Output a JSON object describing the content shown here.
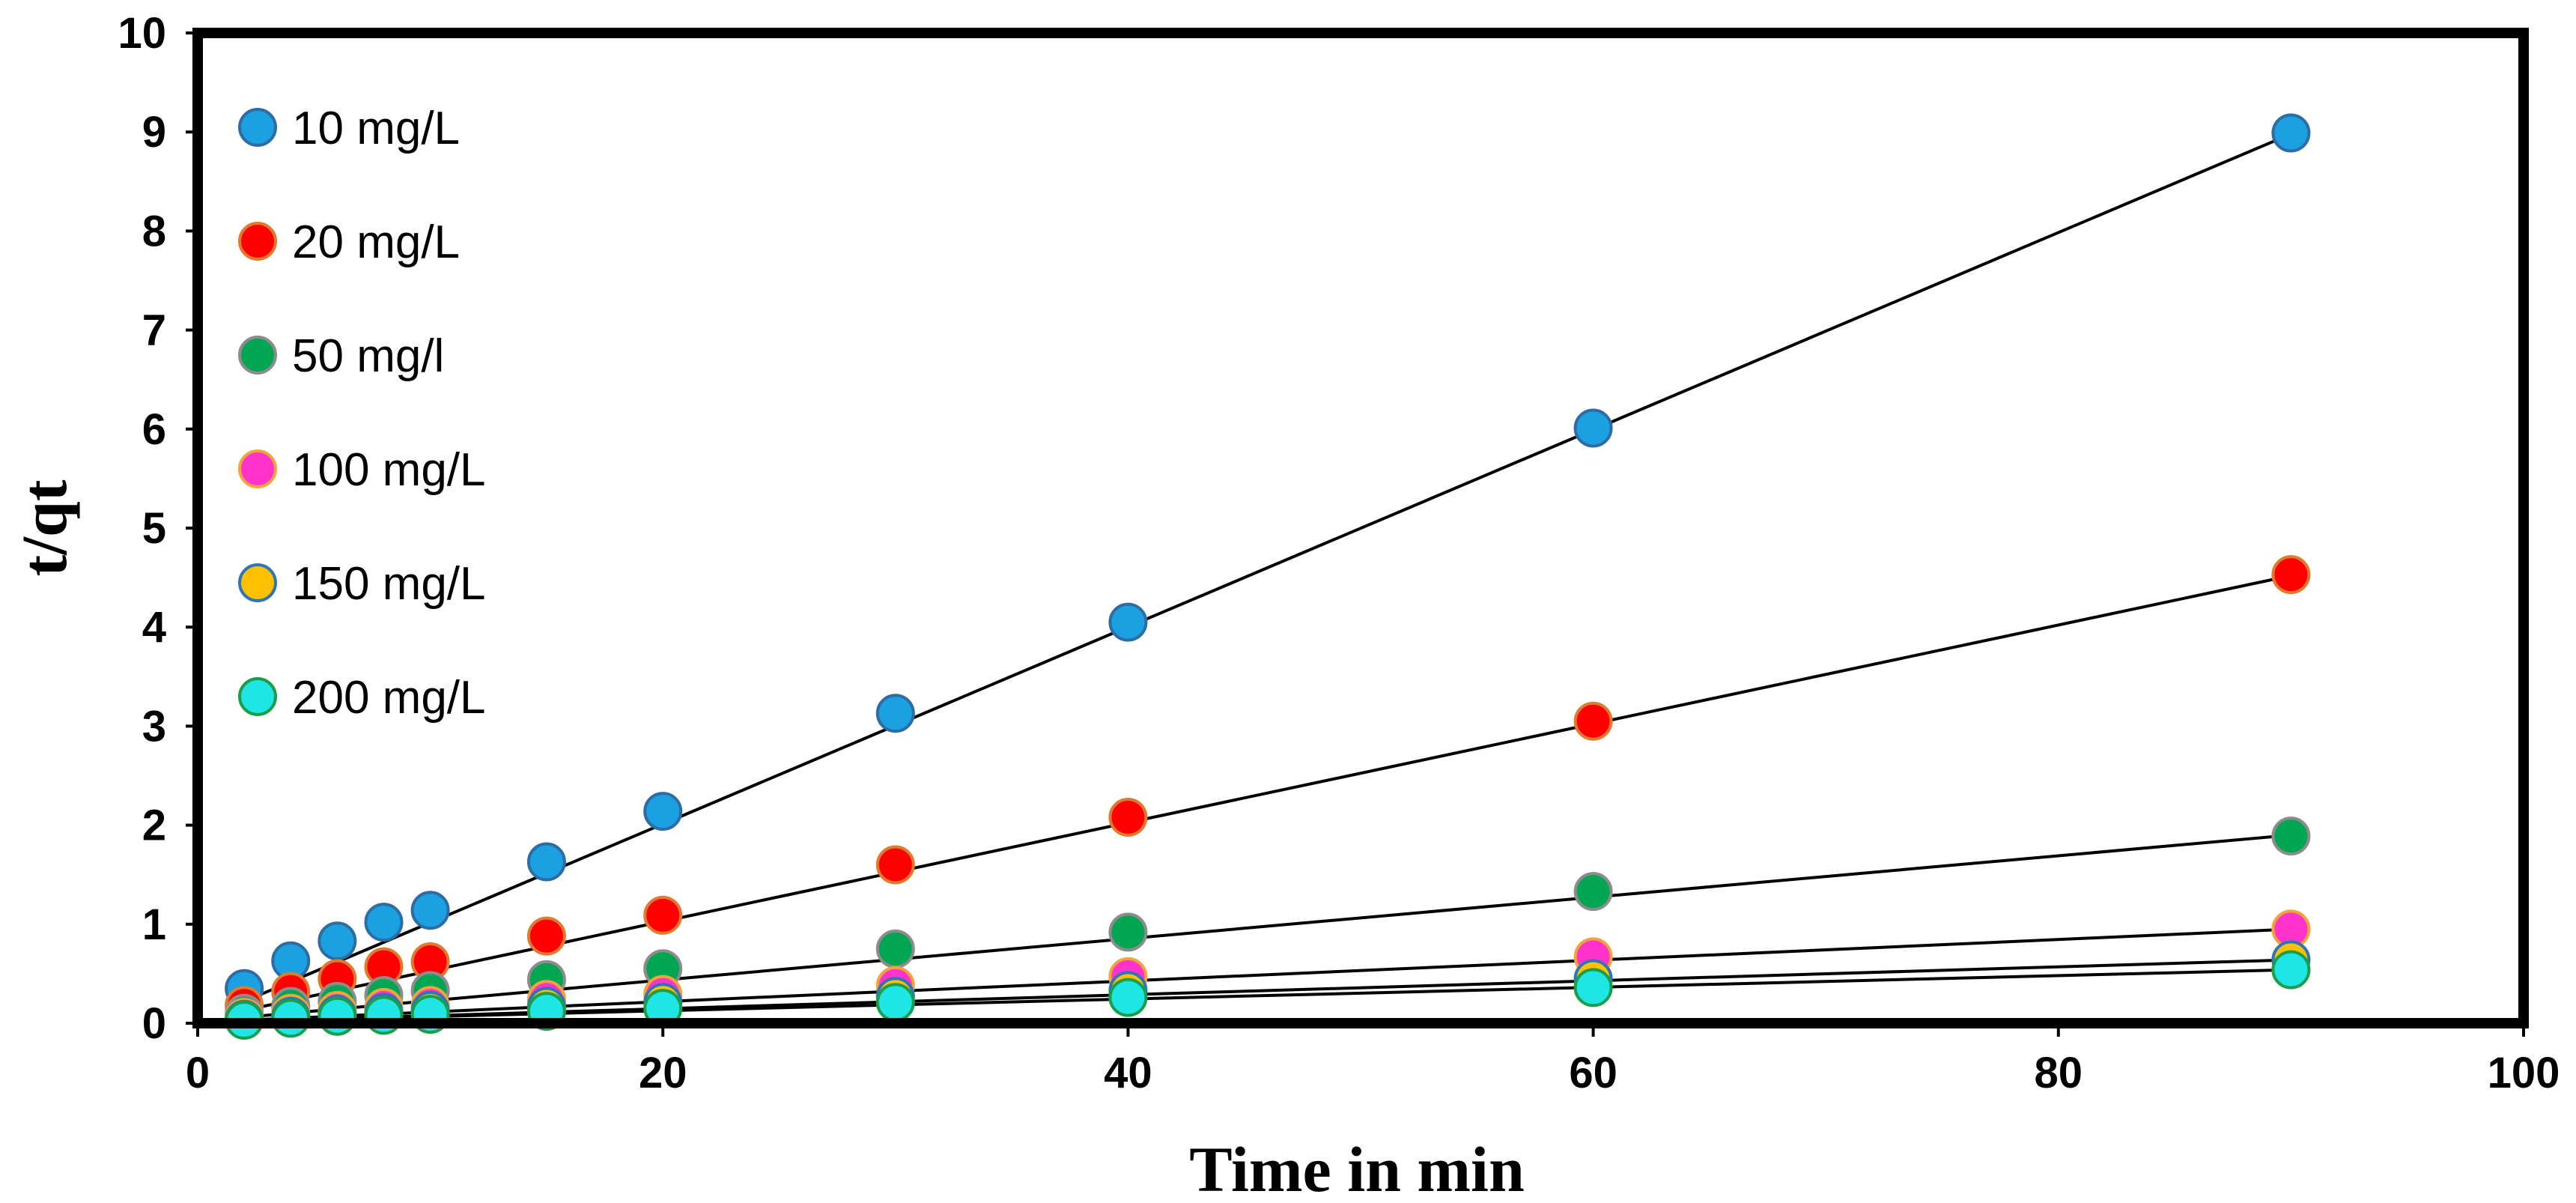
{
  "chart_data": {
    "type": "scatter",
    "title": "",
    "xlabel": "Time in min",
    "ylabel": "t/qt",
    "xlim": [
      0,
      100
    ],
    "ylim": [
      0,
      10
    ],
    "xticks": [
      0,
      20,
      40,
      60,
      80,
      100
    ],
    "yticks": [
      0,
      1,
      2,
      3,
      4,
      5,
      6,
      7,
      8,
      9,
      10
    ],
    "grid": false,
    "legend_position": "top-left",
    "x": [
      2,
      4,
      6,
      8,
      10,
      15,
      20,
      30,
      40,
      60,
      90
    ],
    "series": [
      {
        "name": "10 mg/L",
        "color": "#1ba1e2",
        "edge": "#2e6da4",
        "values": [
          0.35,
          0.63,
          0.83,
          1.02,
          1.14,
          1.63,
          2.14,
          3.13,
          4.05,
          6.01,
          8.99
        ],
        "fit": [
          [
            2,
            0.22
          ],
          [
            90,
            8.98
          ]
        ]
      },
      {
        "name": "20 mg/L",
        "color": "#ff0000",
        "edge": "#e07a2e",
        "values": [
          0.18,
          0.32,
          0.45,
          0.57,
          0.62,
          0.88,
          1.09,
          1.6,
          2.08,
          3.05,
          4.53
        ],
        "fit": [
          [
            2,
            0.13
          ],
          [
            90,
            4.52
          ]
        ]
      },
      {
        "name": "50 mg/l",
        "color": "#00a651",
        "edge": "#8c8c8c",
        "values": [
          0.1,
          0.17,
          0.22,
          0.28,
          0.33,
          0.44,
          0.55,
          0.75,
          0.92,
          1.33,
          1.89
        ],
        "fit": [
          [
            2,
            0.06
          ],
          [
            90,
            1.9
          ]
        ]
      },
      {
        "name": "100 mg/L",
        "color": "#ff33cc",
        "edge": "#f2a33a",
        "values": [
          0.06,
          0.1,
          0.13,
          0.16,
          0.18,
          0.24,
          0.29,
          0.38,
          0.47,
          0.67,
          0.95
        ],
        "fit": [
          [
            2,
            0.03
          ],
          [
            90,
            0.95
          ]
        ]
      },
      {
        "name": "150 mg/L",
        "color": "#ffc000",
        "edge": "#2e75b6",
        "values": [
          0.04,
          0.07,
          0.09,
          0.11,
          0.13,
          0.17,
          0.21,
          0.27,
          0.33,
          0.45,
          0.64
        ],
        "fit": [
          [
            2,
            0.02
          ],
          [
            90,
            0.64
          ]
        ]
      },
      {
        "name": "200 mg/L",
        "color": "#1fe5e5",
        "edge": "#1b9e4a",
        "values": [
          0.03,
          0.05,
          0.07,
          0.08,
          0.09,
          0.12,
          0.15,
          0.21,
          0.26,
          0.36,
          0.54
        ],
        "fit": [
          [
            2,
            0.02
          ],
          [
            90,
            0.54
          ]
        ]
      }
    ]
  }
}
